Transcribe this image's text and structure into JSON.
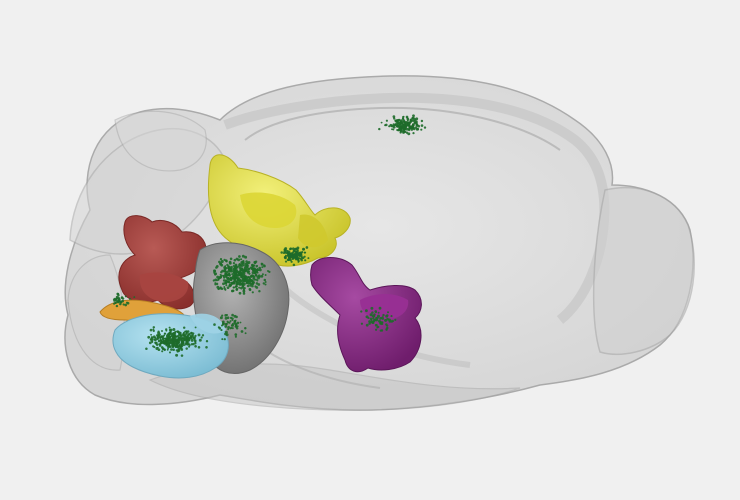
{
  "scene": {
    "background": "#f0f0f0",
    "brain_shell_color": "#c8c8c8",
    "shell_edge_color": "#9a9a9a",
    "dot_color": "#1e6b2a"
  },
  "regions": [
    {
      "name": "yellow-region",
      "color": "#e2df3a"
    },
    {
      "name": "red-region",
      "color": "#a5403c"
    },
    {
      "name": "gray-region",
      "color": "#8f8f8f"
    },
    {
      "name": "blue-region",
      "color": "#8ccbe0"
    },
    {
      "name": "orange-region",
      "color": "#e0a13a"
    },
    {
      "name": "purple-region",
      "color": "#8a2a86"
    }
  ]
}
